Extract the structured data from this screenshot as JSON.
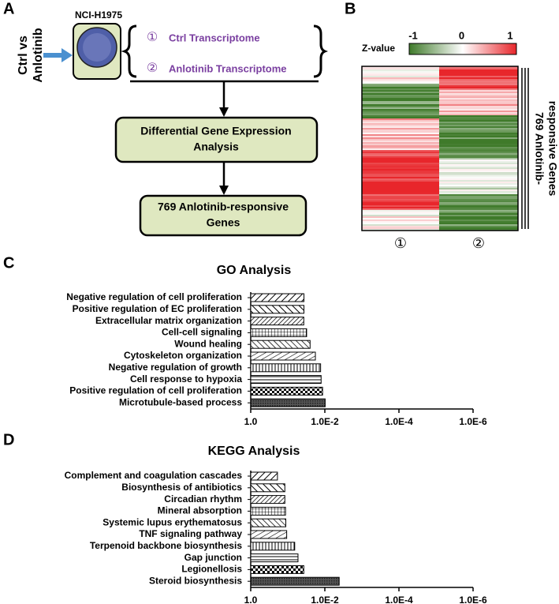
{
  "panels": [
    "A",
    "B",
    "C",
    "D"
  ],
  "diagram": {
    "side_label": [
      "Ctrl vs",
      "Anlotinib"
    ],
    "cell_line": "NCI-H1975",
    "items": [
      {
        "marker": "①",
        "label": "Ctrl Transcriptome"
      },
      {
        "marker": "②",
        "label": "Anlotinib Transcriptome"
      }
    ],
    "step": [
      "Differential Gene Expression",
      "Analysis"
    ],
    "result": [
      "769 Anlotinib-responsive",
      "Genes"
    ]
  },
  "heatmap": {
    "legend_label": "Z-value",
    "range": [
      -1,
      1
    ],
    "ticks": [
      -1,
      0,
      1
    ],
    "row_label": [
      "769 Anlotinib-",
      "responsive Genes"
    ],
    "columns": [
      "①",
      "②"
    ]
  },
  "chart_data": [
    {
      "type": "bar",
      "orientation": "horizontal",
      "title": "GO Analysis",
      "categories": [
        "Negative regulation of cell proliferation",
        "Positive regulation of EC proliferation",
        "Extracellular matrix organization",
        "Cell-cell signaling",
        "Wound healing",
        "Cytoskeleton organization",
        "Negative regulation of growth",
        "Cell response to hypoxia",
        "Positive regulation of cell proliferation",
        "Microtubule-based process"
      ],
      "values": [
        0.0366,
        0.0366,
        0.037,
        0.031,
        0.025,
        0.018,
        0.013,
        0.0126,
        0.0115,
        0.0098
      ],
      "log_x": true,
      "xlim": [
        1,
        1e-06
      ],
      "xticks": [
        {
          "value": 1,
          "label": "1.0"
        },
        {
          "value": 0.01,
          "label": "1.0E-2"
        },
        {
          "value": 0.0001,
          "label": "1.0E-4"
        },
        {
          "value": 1e-06,
          "label": "1.0E-6"
        }
      ]
    },
    {
      "type": "bar",
      "orientation": "horizontal",
      "title": "KEGG Analysis",
      "categories": [
        "Complement and coagulation cascades",
        "Biosynthesis of antibiotics",
        "Circadian rhythm",
        "Mineral absorption",
        "Systemic lupus erythematosus",
        "TNF signaling pathway",
        "Terpenoid backbone biosynthesis",
        "Gap junction",
        "Legionellosis",
        "Steroid biosynthesis"
      ],
      "values": [
        0.19,
        0.12,
        0.12,
        0.115,
        0.113,
        0.107,
        0.065,
        0.053,
        0.037,
        0.0041
      ],
      "log_x": true,
      "xlim": [
        1,
        1e-06
      ],
      "xticks": [
        {
          "value": 1,
          "label": "1.0"
        },
        {
          "value": 0.01,
          "label": "1.0E-2"
        },
        {
          "value": 0.0001,
          "label": "1.0E-4"
        },
        {
          "value": 1e-06,
          "label": "1.0E-6"
        }
      ]
    }
  ]
}
